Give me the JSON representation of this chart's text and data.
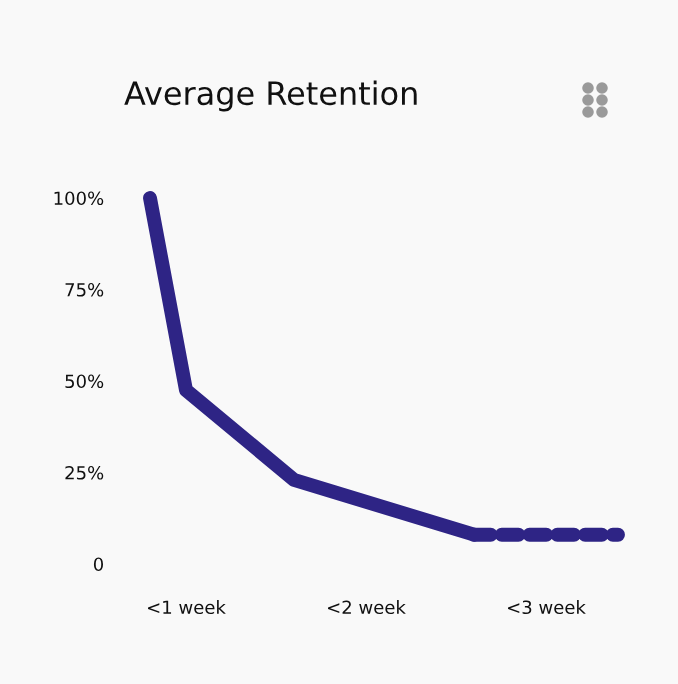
{
  "chart_data": {
    "type": "line",
    "title": "Average Retention",
    "categories": [
      null,
      "<1 week",
      null,
      null,
      null,
      null,
      "<2 week",
      null,
      null,
      null,
      null,
      "<3 week",
      null,
      null
    ],
    "series": [
      {
        "color": "#2e2485",
        "line_style": "solid",
        "values": [
          100,
          47.5,
          null,
          null,
          23,
          null,
          null,
          null,
          null,
          8,
          null,
          null,
          null,
          null
        ]
      },
      {
        "color": "#2e2485",
        "line_style": "dashed",
        "values": [
          null,
          null,
          null,
          null,
          null,
          null,
          null,
          null,
          null,
          8,
          null,
          null,
          null,
          8
        ]
      }
    ],
    "ylim": [
      0,
      100
    ],
    "yticks": [
      0,
      {
        "value": 25,
        "label": "25%"
      },
      {
        "value": 50,
        "label": "50%"
      },
      {
        "value": 75,
        "label": "75%"
      },
      {
        "value": 100,
        "label": "100%"
      }
    ],
    "grid": false,
    "marker": "none"
  }
}
